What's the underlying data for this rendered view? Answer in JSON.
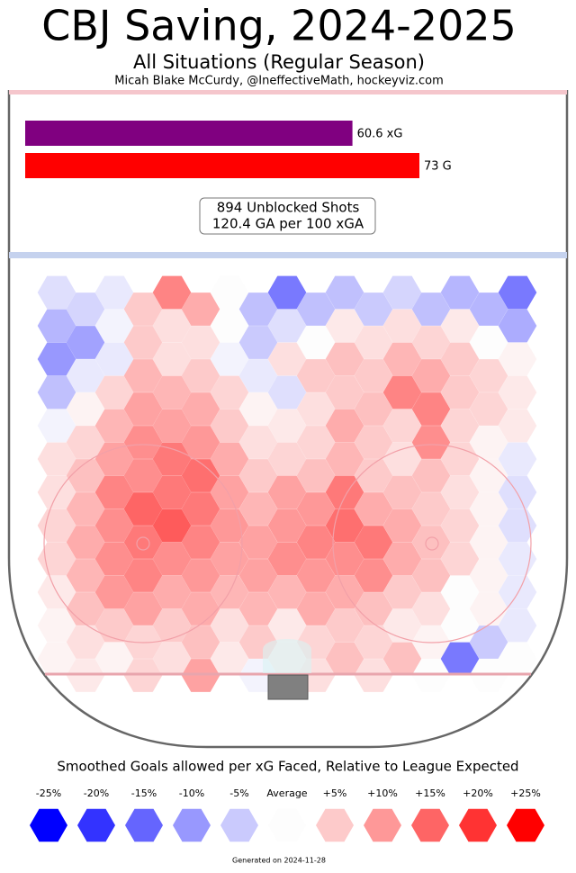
{
  "chart_data": {
    "type": "hexbin",
    "title": "CBJ Saving, 2024-2025",
    "subtitle": "All Situations (Regular Season)",
    "byline": "Micah Blake McCurdy, @IneffectiveMath, hockeyviz.com",
    "bars": [
      {
        "value": 60.6,
        "label": "60.6 xG",
        "color": "#800080"
      },
      {
        "value": 73,
        "label": "73 G",
        "color": "#ff0000"
      }
    ],
    "summary": [
      "894 Unblocked Shots",
      "120.4 GA per 100 xGA"
    ],
    "color_low": "#0000ff",
    "color_high": "#ff0000",
    "clim": [
      -25,
      25
    ],
    "hexes": {
      "rows": [
        [
          -3,
          -4,
          -2,
          5,
          12,
          8,
          0,
          -6,
          -13,
          -6,
          -6,
          -5,
          -4,
          -6,
          -7,
          -7,
          -13
        ],
        [
          -7,
          -9,
          -1,
          5,
          3,
          3,
          0,
          -5,
          -3,
          0,
          2,
          3,
          3,
          4,
          2,
          0,
          -8
        ],
        [
          -10,
          -2,
          -2,
          7,
          3,
          5,
          -1,
          -2,
          3,
          5,
          6,
          5,
          7,
          8,
          5,
          4,
          1
        ],
        [
          -6,
          1,
          4,
          9,
          7,
          8,
          4,
          1,
          -3,
          3,
          5,
          6,
          12,
          12,
          5,
          4,
          2
        ],
        [
          -1,
          4,
          7,
          11,
          9,
          10,
          5,
          3,
          2,
          4,
          8,
          5,
          4,
          11,
          4,
          1,
          2
        ],
        [
          3,
          6,
          9,
          11,
          13,
          14,
          8,
          5,
          4,
          6,
          7,
          5,
          3,
          6,
          4,
          1,
          -2
        ],
        [
          3,
          7,
          12,
          15,
          13,
          13,
          9,
          7,
          9,
          10,
          13,
          8,
          6,
          5,
          3,
          1,
          -3
        ],
        [
          4,
          8,
          11,
          13,
          16,
          12,
          10,
          9,
          10,
          12,
          14,
          13,
          8,
          6,
          4,
          1,
          -3
        ],
        [
          4,
          7,
          11,
          12,
          11,
          10,
          9,
          9,
          11,
          10,
          11,
          11,
          8,
          6,
          4,
          1,
          -2
        ],
        [
          2,
          6,
          10,
          9,
          8,
          8,
          7,
          7,
          7,
          8,
          8,
          6,
          5,
          3,
          0,
          1,
          -2
        ],
        [
          1,
          3,
          5,
          4,
          5,
          6,
          3,
          5,
          2,
          4,
          5,
          4,
          2,
          1,
          0,
          -5,
          -2
        ],
        [
          1,
          2,
          1,
          4,
          3,
          9,
          2,
          -1,
          2,
          3,
          6,
          3,
          6,
          0,
          -13,
          0,
          0
        ]
      ]
    },
    "legend_title": "Smoothed Goals allowed per xG Faced, Relative to League Expected",
    "legend_ticks": [
      {
        "value": -25,
        "label": "-25%"
      },
      {
        "value": -20,
        "label": "-20%"
      },
      {
        "value": -15,
        "label": "-15%"
      },
      {
        "value": -10,
        "label": "-10%"
      },
      {
        "value": -5,
        "label": "-5%"
      },
      {
        "value": 0,
        "label": "Average"
      },
      {
        "value": 5,
        "label": "+5%"
      },
      {
        "value": 10,
        "label": "+10%"
      },
      {
        "value": 15,
        "label": "+15%"
      },
      {
        "value": 20,
        "label": "+20%"
      },
      {
        "value": 25,
        "label": "+25%"
      }
    ],
    "footer": "Generated on 2024-11-28"
  }
}
